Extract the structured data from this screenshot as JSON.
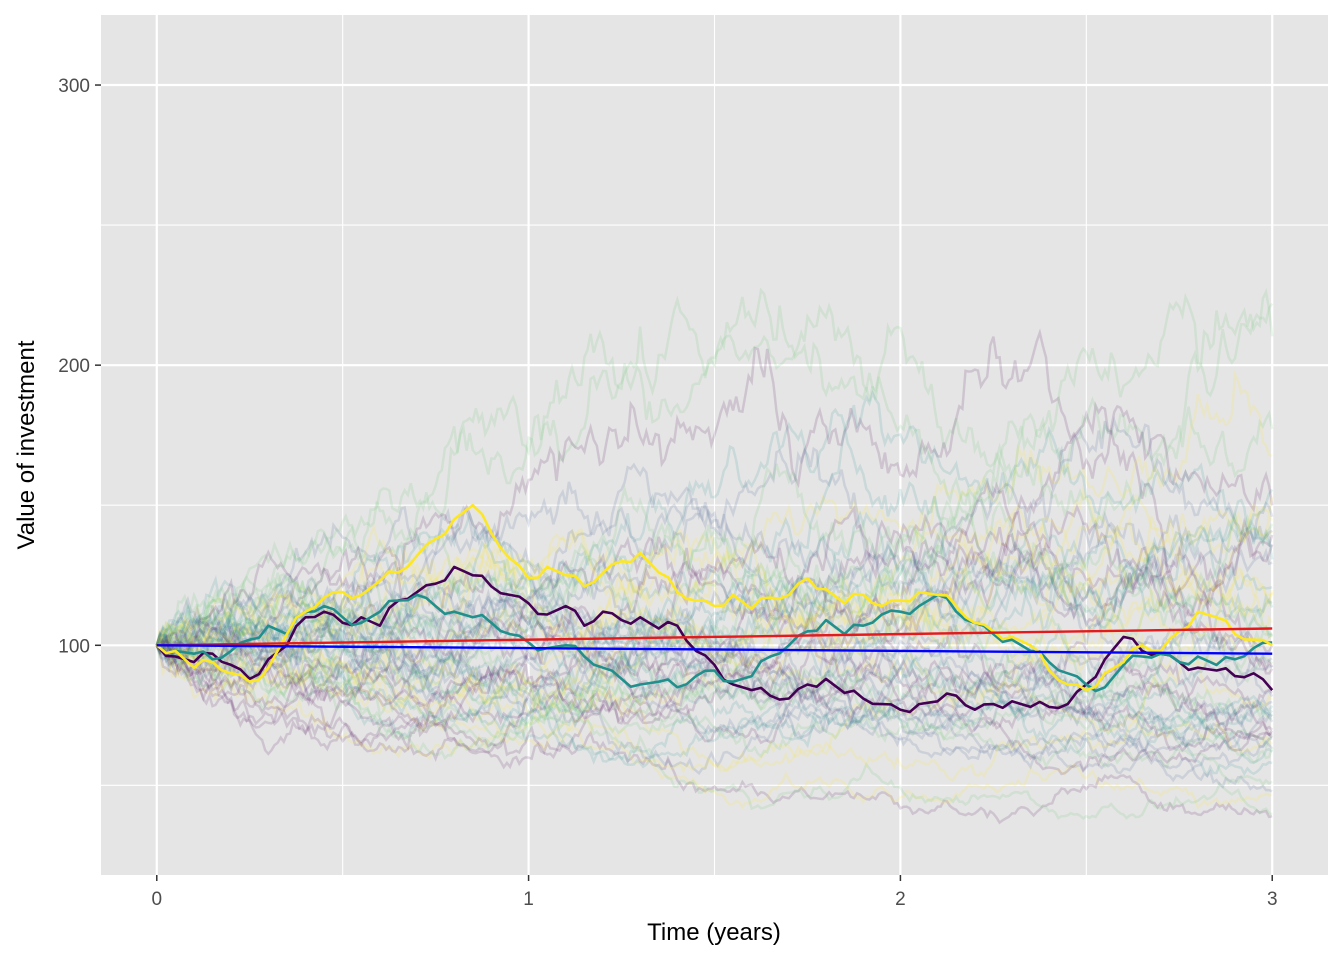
{
  "chart_data": {
    "type": "line",
    "xlabel": "Time (years)",
    "ylabel": "Value of investment",
    "xlim": [
      -0.15,
      3.15
    ],
    "ylim": [
      18,
      325
    ],
    "x_ticks": [
      0,
      1,
      2,
      3
    ],
    "x_tick_labels": [
      "0",
      "1",
      "2",
      "3"
    ],
    "y_ticks": [
      100,
      200,
      300
    ],
    "y_tick_labels": [
      "100",
      "200",
      "300"
    ],
    "grid": true,
    "legend": "none",
    "colors": {
      "panel": "#e5e5e5",
      "grid": "#ffffff",
      "tick_text": "#4d4d4d",
      "trend_red": "#e41a1c",
      "trend_blue": "#0000ff"
    },
    "background_paths": {
      "count": 60,
      "opacity": 0.14,
      "start_value": 100,
      "palette": [
        "#440154",
        "#3b528b",
        "#21908c",
        "#5dc863",
        "#fde725"
      ]
    },
    "highlighted_series": [
      {
        "color": "#440154",
        "x": [
          0,
          0.05,
          0.1,
          0.15,
          0.2,
          0.25,
          0.3,
          0.35,
          0.4,
          0.45,
          0.5,
          0.55,
          0.6,
          0.65,
          0.7,
          0.75,
          0.8,
          0.85,
          0.9,
          0.95,
          1.0,
          1.05,
          1.1,
          1.15,
          1.2,
          1.25,
          1.3,
          1.35,
          1.4,
          1.45,
          1.5,
          1.55,
          1.6,
          1.65,
          1.7,
          1.75,
          1.8,
          1.85,
          1.9,
          1.95,
          2.0,
          2.05,
          2.1,
          2.15,
          2.2,
          2.25,
          2.3,
          2.35,
          2.4,
          2.45,
          2.5,
          2.55,
          2.6,
          2.65,
          2.7,
          2.75,
          2.8,
          2.85,
          2.9,
          2.95,
          3.0
        ],
        "y": [
          100,
          96,
          94,
          97,
          93,
          88,
          95,
          100,
          110,
          112,
          108,
          110,
          107,
          116,
          119,
          122,
          128,
          125,
          121,
          118,
          115,
          111,
          114,
          107,
          112,
          109,
          110,
          106,
          107,
          98,
          93,
          86,
          84,
          82,
          81,
          86,
          88,
          83,
          81,
          79,
          77,
          79,
          80,
          82,
          77,
          79,
          80,
          78,
          78,
          79,
          86,
          95,
          103,
          98,
          97,
          94,
          92,
          91,
          89,
          90,
          84
        ]
      },
      {
        "color": "#21908c",
        "x": [
          0,
          0.05,
          0.1,
          0.15,
          0.2,
          0.25,
          0.3,
          0.35,
          0.4,
          0.45,
          0.5,
          0.55,
          0.6,
          0.65,
          0.7,
          0.75,
          0.8,
          0.85,
          0.9,
          0.95,
          1.0,
          1.05,
          1.1,
          1.15,
          1.2,
          1.25,
          1.3,
          1.35,
          1.4,
          1.45,
          1.5,
          1.55,
          1.6,
          1.65,
          1.7,
          1.75,
          1.8,
          1.85,
          1.9,
          1.95,
          2.0,
          2.05,
          2.1,
          2.15,
          2.2,
          2.25,
          2.3,
          2.35,
          2.4,
          2.45,
          2.5,
          2.55,
          2.6,
          2.65,
          2.7,
          2.75,
          2.8,
          2.85,
          2.9,
          2.95,
          3.0
        ],
        "y": [
          100,
          98,
          97,
          95,
          98,
          102,
          107,
          104,
          112,
          114,
          110,
          108,
          112,
          116,
          118,
          114,
          112,
          110,
          108,
          104,
          101,
          99,
          100,
          96,
          92,
          88,
          86,
          87,
          85,
          89,
          91,
          87,
          89,
          96,
          100,
          105,
          109,
          104,
          107,
          111,
          112,
          114,
          118,
          112,
          108,
          104,
          102,
          98,
          94,
          90,
          86,
          85,
          93,
          96,
          97,
          94,
          96,
          93,
          95,
          99,
          101
        ]
      },
      {
        "color": "#fde725",
        "x": [
          0,
          0.05,
          0.1,
          0.15,
          0.2,
          0.25,
          0.3,
          0.35,
          0.4,
          0.45,
          0.5,
          0.55,
          0.6,
          0.65,
          0.7,
          0.75,
          0.8,
          0.85,
          0.9,
          0.95,
          1.0,
          1.05,
          1.1,
          1.15,
          1.2,
          1.25,
          1.3,
          1.35,
          1.4,
          1.45,
          1.5,
          1.55,
          1.6,
          1.65,
          1.7,
          1.75,
          1.8,
          1.85,
          1.9,
          1.95,
          2.0,
          2.05,
          2.1,
          2.15,
          2.2,
          2.25,
          2.3,
          2.35,
          2.4,
          2.45,
          2.5,
          2.55,
          2.6,
          2.65,
          2.7,
          2.75,
          2.8,
          2.85,
          2.9,
          2.95,
          3.0
        ],
        "y": [
          100,
          98,
          92,
          94,
          90,
          87,
          92,
          104,
          112,
          117,
          119,
          118,
          123,
          126,
          132,
          138,
          145,
          150,
          140,
          131,
          124,
          128,
          125,
          121,
          126,
          130,
          133,
          126,
          119,
          116,
          114,
          118,
          113,
          117,
          118,
          124,
          120,
          115,
          118,
          114,
          116,
          119,
          118,
          114,
          108,
          105,
          103,
          100,
          91,
          86,
          84,
          90,
          94,
          100,
          98,
          105,
          112,
          110,
          104,
          102,
          100
        ]
      }
    ],
    "trend_lines": [
      {
        "color": "#e41a1c",
        "x": [
          0,
          3
        ],
        "y": [
          100,
          106
        ]
      },
      {
        "color": "#0000ff",
        "x": [
          0,
          3
        ],
        "y": [
          100,
          97
        ]
      }
    ]
  }
}
